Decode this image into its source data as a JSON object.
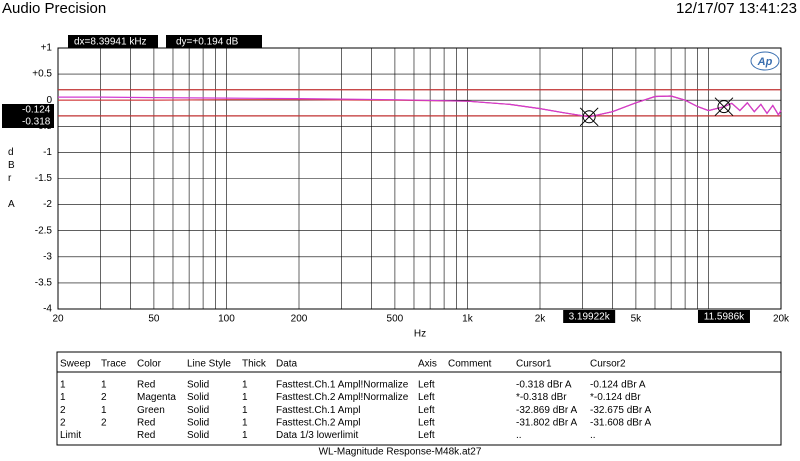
{
  "header": {
    "title": "Audio Precision",
    "timestamp": "12/17/07 13:41:23",
    "dx": "dx=8.39941 kHz",
    "dy": "dy=+0.194  dB",
    "logo": "Ap"
  },
  "chart_data": {
    "type": "line",
    "xscale": "log",
    "grid": true,
    "x_label": "Hz",
    "y_label": "dBr A",
    "xlim": [
      20,
      20000
    ],
    "ylim": [
      -4,
      1
    ],
    "xticks": [
      20,
      50,
      100,
      200,
      500,
      {
        "value": 1000,
        "label": "1k"
      },
      {
        "value": 2000,
        "label": "2k"
      },
      {
        "value": 5000,
        "label": "5k"
      },
      {
        "value": 10000,
        "label": "10k"
      },
      {
        "value": 20000,
        "label": "20k"
      }
    ],
    "xminorticks": [
      30,
      40,
      60,
      70,
      80,
      90,
      300,
      400,
      600,
      700,
      800,
      900,
      3000,
      4000,
      6000,
      7000,
      8000,
      9000
    ],
    "yticks": [
      {
        "value": 1,
        "label": "+1"
      },
      {
        "value": 0.5,
        "label": "+0.5"
      },
      0,
      -0.5,
      -1,
      -1.5,
      -2,
      -2.5,
      -3,
      -3.5,
      -4
    ],
    "x": [
      20,
      30,
      50,
      100,
      200,
      500,
      1000,
      1500,
      2000,
      2500,
      3199.22,
      4000,
      5000,
      6000,
      7000,
      8000,
      9000,
      10000,
      11598.6,
      12500,
      13500,
      14500,
      15500,
      16500,
      17500,
      18500,
      19500,
      20000
    ],
    "series": [
      {
        "name": "Red",
        "color": "#d23a3a",
        "values": [
          0.0,
          0.0,
          0.0,
          0.01,
          0.01,
          0.0,
          -0.02,
          -0.08,
          -0.16,
          -0.24,
          -0.318,
          -0.22,
          -0.05,
          0.07,
          0.08,
          0.0,
          -0.12,
          -0.2,
          -0.124,
          -0.06,
          -0.2,
          -0.05,
          -0.22,
          -0.08,
          -0.25,
          -0.1,
          -0.28,
          -0.2
        ]
      },
      {
        "name": "Magenta",
        "color": "#d23ad2",
        "values": [
          0.06,
          0.06,
          0.05,
          0.04,
          0.03,
          0.01,
          -0.02,
          -0.08,
          -0.16,
          -0.24,
          -0.318,
          -0.22,
          -0.05,
          0.07,
          0.08,
          0.0,
          -0.12,
          -0.2,
          -0.124,
          -0.06,
          -0.2,
          -0.05,
          -0.22,
          -0.08,
          -0.25,
          -0.1,
          -0.28,
          -0.2
        ]
      }
    ],
    "limits": {
      "color": "#c03030",
      "values": [
        0.2,
        -0.3
      ]
    },
    "cursors": [
      {
        "x": {
          "value": 3199.22,
          "label": "3.19922k"
        },
        "y": -0.318
      },
      {
        "x": {
          "value": 11598.6,
          "label": "11.5986k"
        },
        "y": -0.124
      }
    ]
  },
  "table": {
    "columns": [
      "Sweep",
      "Trace",
      "Color",
      "Line Style",
      "Thick",
      "Data",
      "Axis",
      "Comment",
      "Cursor1",
      "Cursor2"
    ],
    "rows": [
      [
        "1",
        "1",
        "Red",
        "Solid",
        "1",
        "Fasttest.Ch.1 Ampl!Normalize",
        "Left",
        null,
        "-0.318  dBr A",
        "-0.124  dBr A"
      ],
      [
        "1",
        "2",
        "Magenta",
        "Solid",
        "1",
        "Fasttest.Ch.2 Ampl!Normalize",
        "Left",
        null,
        "*-0.318  dBr",
        "*-0.124  dBr"
      ],
      [
        "2",
        "1",
        "Green",
        "Solid",
        "1",
        "Fasttest.Ch.1 Ampl",
        "Left",
        null,
        "-32.869  dBr A",
        "-32.675  dBr A"
      ],
      [
        "2",
        "2",
        "Red",
        "Solid",
        "1",
        "Fasttest.Ch.2 Ampl",
        "Left",
        null,
        "-31.802  dBr A",
        "-31.608  dBr A"
      ],
      [
        "Limit",
        null,
        "Red",
        "Solid",
        "1",
        "Data 1/3 lowerlimit",
        "Left",
        null,
        "..",
        ".."
      ]
    ]
  },
  "footer": "WL-Magnitude Response-M48k.at27"
}
